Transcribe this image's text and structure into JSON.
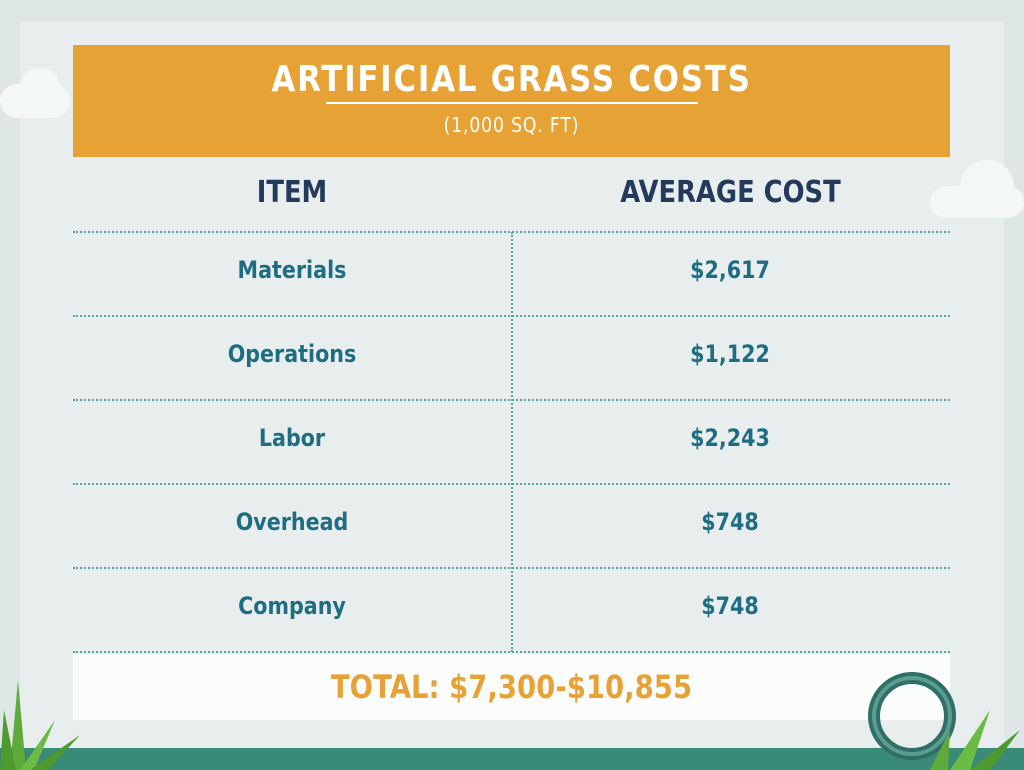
{
  "header": {
    "title": "ARTIFICIAL GRASS COSTS",
    "subtitle": "(1,000 SQ. FT)"
  },
  "table": {
    "col_item": "ITEM",
    "col_cost": "AVERAGE COST",
    "rows": [
      {
        "item": "Materials",
        "cost": "$2,617"
      },
      {
        "item": "Operations",
        "cost": "$1,122"
      },
      {
        "item": "Labor",
        "cost": "$2,243"
      },
      {
        "item": "Overhead",
        "cost": "$748"
      },
      {
        "item": "Company",
        "cost": "$748"
      }
    ],
    "total": "TOTAL:  $7,300-$10,855"
  },
  "colors": {
    "header_bg": "#e7a235",
    "heading_text": "#233a5a",
    "cell_text": "#1f6d82",
    "divider": "#5aa3a3",
    "total_text": "#e7a235"
  },
  "decorations": [
    "cloud-icon",
    "grass-icon",
    "garden-hose-icon"
  ]
}
